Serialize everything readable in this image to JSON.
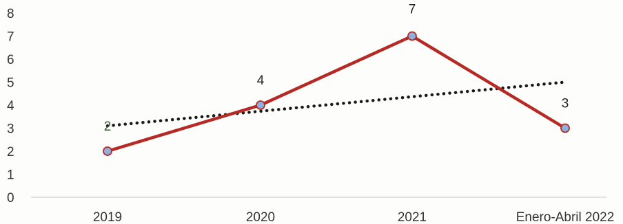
{
  "chart_data": {
    "type": "line",
    "title": "",
    "xlabel": "",
    "ylabel": "",
    "categories": [
      "2019",
      "2020",
      "2021",
      "Enero-Abril 2022"
    ],
    "ylim": [
      0,
      8
    ],
    "yticks": [
      "0",
      "1",
      "2",
      "3",
      "4",
      "5",
      "6",
      "7",
      "8"
    ],
    "grid": false,
    "legend": "none",
    "series": [
      {
        "values": [
          2,
          4,
          7,
          3
        ],
        "data_labels": [
          "2",
          "4",
          "7",
          "3"
        ],
        "color": "#b52a24",
        "marker_color": "#8fb0dc"
      }
    ],
    "trendline": {
      "type": "linear",
      "style": "dotted",
      "color": "#1a1a1a",
      "values": [
        3.1,
        5.0
      ]
    }
  }
}
